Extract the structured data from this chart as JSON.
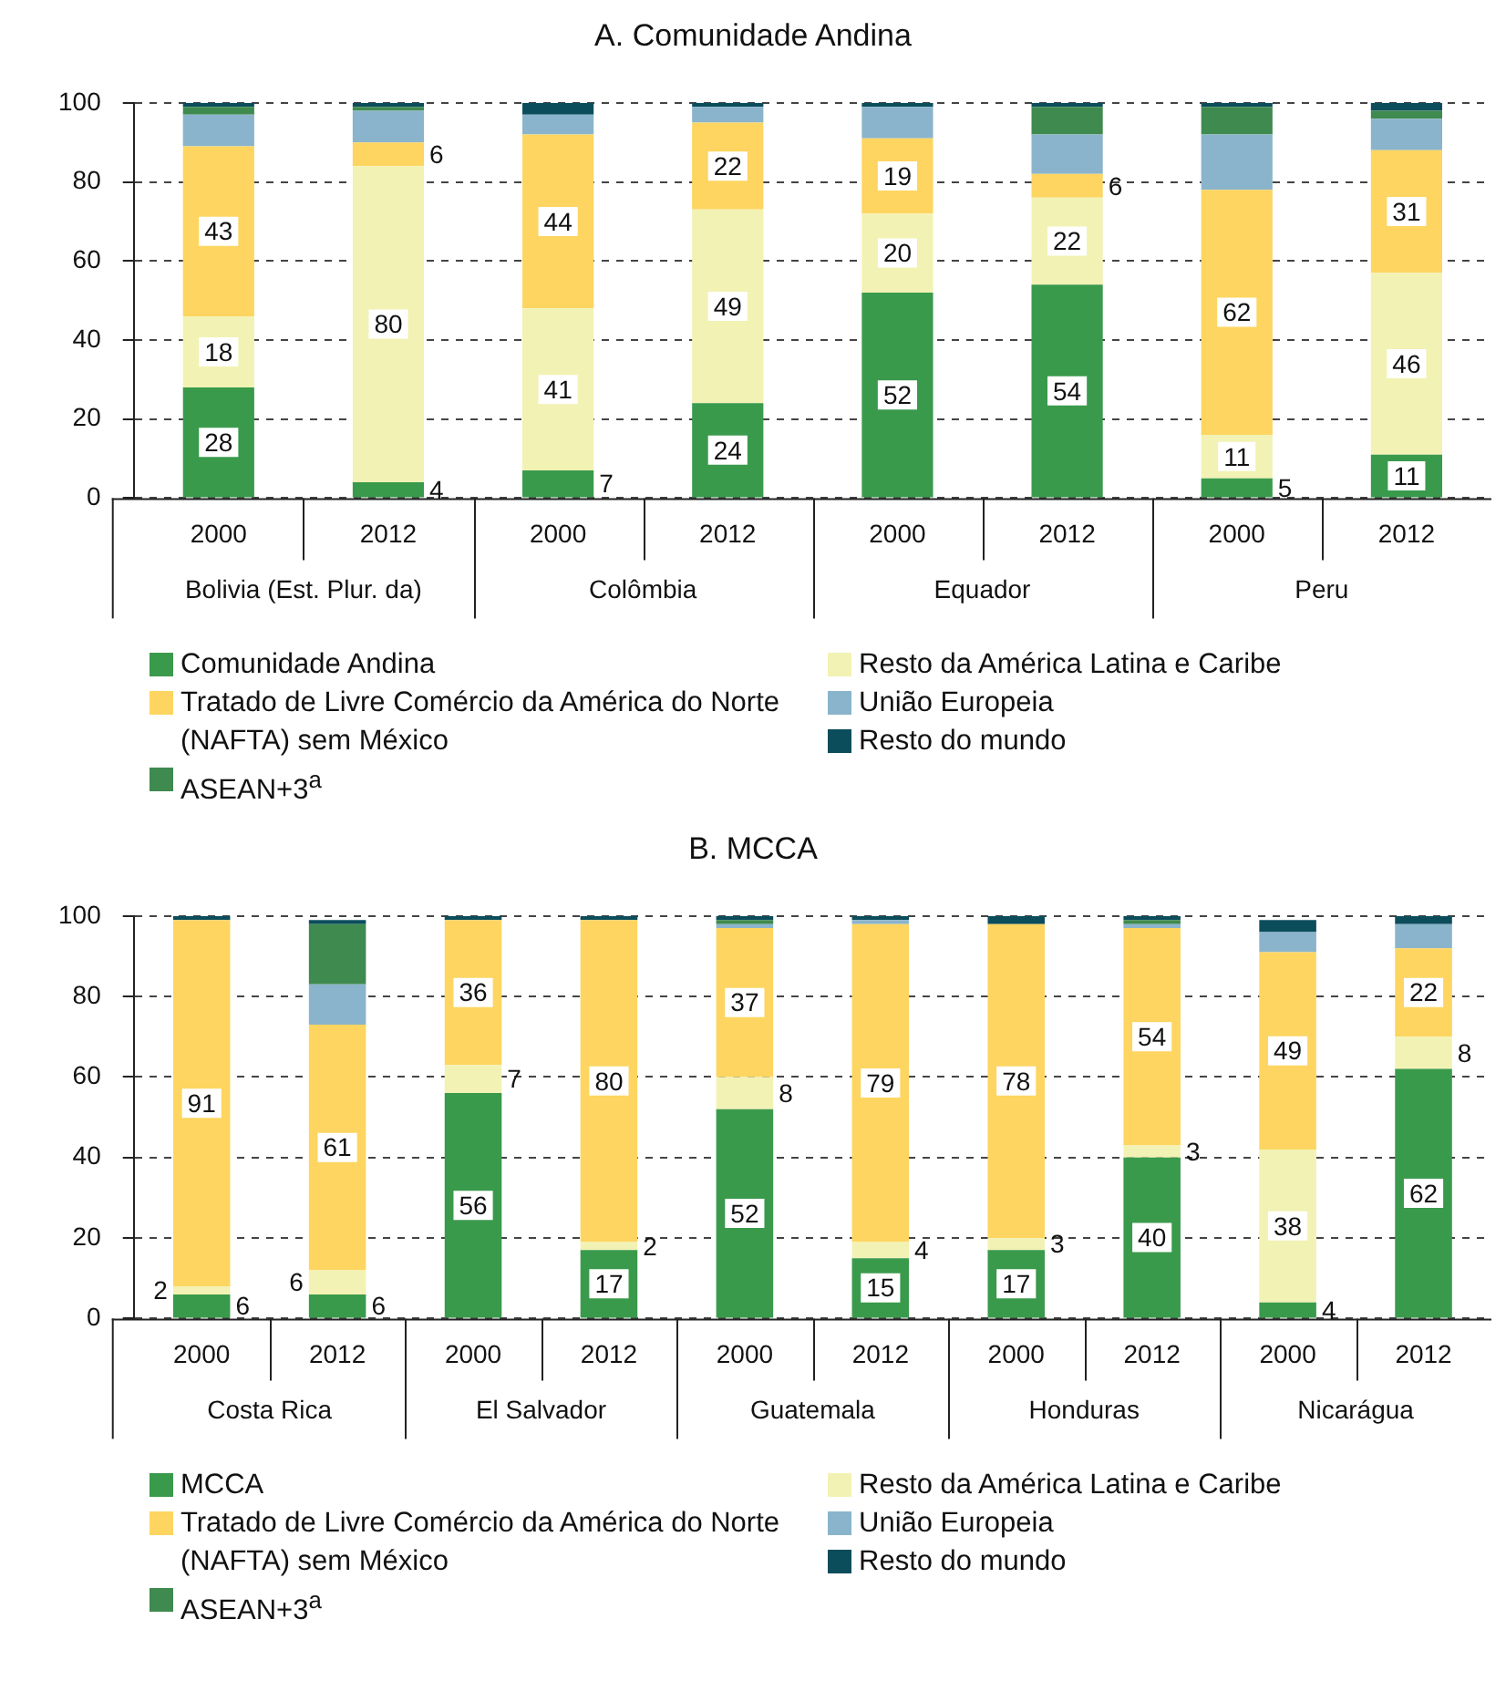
{
  "chart_data": [
    {
      "type": "bar",
      "title": "A. Comunidade Andina",
      "stacked": true,
      "grid": "y",
      "legend": "bottom",
      "ylim": [
        0,
        100
      ],
      "yticks": [
        0,
        20,
        40,
        60,
        80,
        100
      ],
      "categories": [
        "2000",
        "2012",
        "2000",
        "2012",
        "2000",
        "2012",
        "2000",
        "2012"
      ],
      "annotations": [
        "Bolivia (Est. Plur. da)",
        "Colômbia",
        "Equador",
        "Peru"
      ],
      "series": [
        {
          "name": "Comunidade Andina",
          "color": "#3a9a4c",
          "values": [
            28,
            4,
            7,
            24,
            52,
            54,
            5,
            11
          ],
          "value_labels": [
            "28",
            "4",
            "7",
            "24",
            "52",
            "54",
            "5",
            "11"
          ]
        },
        {
          "name": "Resto da América Latina e Caribe",
          "color": "#f2f2b4",
          "values": [
            18,
            80,
            41,
            49,
            20,
            22,
            11,
            46
          ],
          "value_labels": [
            "18",
            "80",
            "41",
            "49",
            "20",
            "22",
            "11",
            "46"
          ]
        },
        {
          "name": "Tratado de Livre Comércio da América do Norte (NAFTA) sem México",
          "color": "#fdd560",
          "values": [
            43,
            6,
            44,
            22,
            19,
            6,
            62,
            31
          ],
          "value_labels": [
            "43",
            "6",
            "44",
            "22",
            "19",
            "6",
            "62",
            "31"
          ]
        },
        {
          "name": "União Europeia",
          "color": "#8ab4cc",
          "values": [
            8,
            8,
            5,
            4,
            8,
            10,
            14,
            8
          ]
        },
        {
          "name": "ASEAN+3$^{a}$",
          "color": "#3f8a4f",
          "values": [
            2,
            1,
            0,
            0,
            0,
            7,
            7,
            2
          ]
        },
        {
          "name": "Resto do mundo",
          "color": "#0c4d5c",
          "values": [
            1,
            1,
            3,
            1,
            1,
            1,
            1,
            2
          ]
        }
      ]
    },
    {
      "type": "bar",
      "title": "B. MCCA",
      "stacked": true,
      "grid": "y",
      "legend": "bottom",
      "ylim": [
        0,
        100
      ],
      "yticks": [
        0,
        20,
        40,
        60,
        80,
        100
      ],
      "categories": [
        "2000",
        "2012",
        "2000",
        "2012",
        "2000",
        "2012",
        "2000",
        "2012",
        "2000",
        "2012"
      ],
      "annotations": [
        "Costa Rica",
        "El Salvador",
        "Guatemala",
        "Honduras",
        "Nicarágua"
      ],
      "series": [
        {
          "name": "MCCA",
          "color": "#3a9a4c",
          "values": [
            6,
            6,
            56,
            17,
            52,
            15,
            17,
            40,
            4,
            62
          ],
          "value_labels": [
            "6",
            "6",
            "56",
            "17",
            "52",
            "15",
            "17",
            "40",
            "4",
            "62"
          ]
        },
        {
          "name": "Resto da América Latina e Caribe",
          "color": "#f2f2b4",
          "values": [
            2,
            6,
            7,
            2,
            8,
            4,
            3,
            3,
            38,
            8
          ],
          "value_labels": [
            "2",
            "6",
            "7",
            "2",
            "8",
            "4",
            "3",
            "3",
            "38",
            "8"
          ]
        },
        {
          "name": "Tratado de Livre Comércio da América do Norte (NAFTA) sem México",
          "color": "#fdd560",
          "values": [
            91,
            61,
            36,
            80,
            37,
            79,
            78,
            54,
            49,
            22
          ],
          "value_labels": [
            "91",
            "61",
            "36",
            "80",
            "37",
            "79",
            "78",
            "54",
            "49",
            "22"
          ]
        },
        {
          "name": "União Europeia",
          "color": "#8ab4cc",
          "values": [
            0,
            10,
            0,
            0,
            1,
            1,
            0,
            1,
            5,
            6
          ]
        },
        {
          "name": "ASEAN+3$^{a}$",
          "color": "#3f8a4f",
          "values": [
            0,
            15,
            0,
            0,
            1,
            0,
            0,
            1,
            0,
            0
          ]
        },
        {
          "name": "Resto do mundo",
          "color": "#0c4d5c",
          "values": [
            1,
            1,
            1,
            1,
            1,
            1,
            2,
            1,
            3,
            2
          ]
        }
      ]
    }
  ]
}
